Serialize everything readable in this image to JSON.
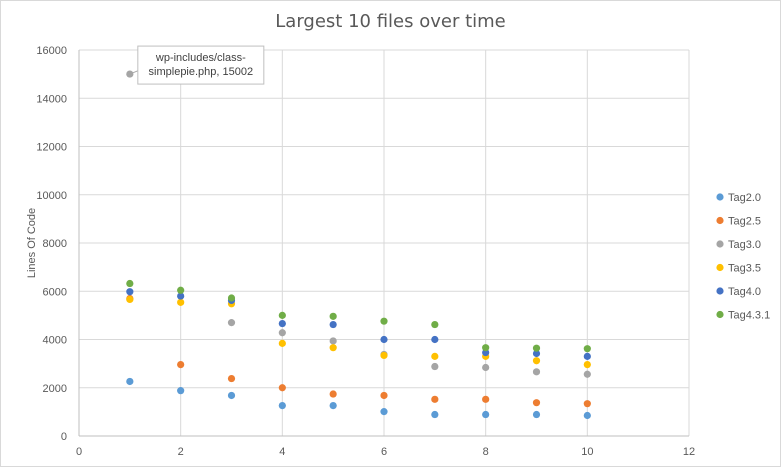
{
  "chart_data": {
    "type": "scatter",
    "title": "Largest 10 files over time",
    "xlabel": "",
    "ylabel": "Lines Of Code",
    "xlim": [
      0,
      12
    ],
    "ylim": [
      0,
      16000
    ],
    "xticks": [
      0,
      2,
      4,
      6,
      8,
      10,
      12
    ],
    "yticks": [
      0,
      2000,
      4000,
      6000,
      8000,
      10000,
      12000,
      14000,
      16000
    ],
    "grid": true,
    "legend_position": "right",
    "series": [
      {
        "name": "Tag2.0",
        "color": "#5b9bd5",
        "x": [
          1,
          2,
          3,
          4,
          5,
          6,
          7,
          8,
          9,
          10
        ],
        "y": [
          2260,
          1880,
          1680,
          1260,
          1260,
          1010,
          890,
          890,
          890,
          850
        ]
      },
      {
        "name": "Tag2.5",
        "color": "#ed7d31",
        "x": [
          1,
          2,
          3,
          4,
          5,
          6,
          7,
          8,
          9,
          10
        ],
        "y": [
          5700,
          2960,
          2380,
          2000,
          1740,
          1680,
          1520,
          1520,
          1380,
          1340
        ]
      },
      {
        "name": "Tag3.0",
        "color": "#a5a5a5",
        "x": [
          1,
          3,
          4,
          5,
          6,
          7,
          8,
          9,
          10
        ],
        "y": [
          15002,
          4700,
          4280,
          3940,
          3380,
          2880,
          2840,
          2660,
          2560
        ]
      },
      {
        "name": "Tag3.5",
        "color": "#ffc000",
        "x": [
          1,
          2,
          3,
          4,
          5,
          6,
          7,
          8,
          9,
          10
        ],
        "y": [
          5660,
          5540,
          5480,
          3840,
          3660,
          3340,
          3300,
          3300,
          3120,
          2960
        ]
      },
      {
        "name": "Tag4.0",
        "color": "#4472c4",
        "x": [
          1,
          2,
          3,
          4,
          5,
          6,
          7,
          8,
          9,
          10
        ],
        "y": [
          5980,
          5800,
          5620,
          4660,
          4620,
          4000,
          4000,
          3460,
          3420,
          3300
        ]
      },
      {
        "name": "Tag4.3.1",
        "color": "#70ad47",
        "x": [
          1,
          2,
          3,
          4,
          5,
          6,
          7,
          8,
          9,
          10
        ],
        "y": [
          6320,
          6040,
          5720,
          5000,
          4960,
          4760,
          4620,
          3660,
          3640,
          3620
        ]
      }
    ],
    "annotations": [
      {
        "series": "Tag3.0",
        "x": 1,
        "y": 15002,
        "lines": [
          "wp-includes/class-",
          "simplepie.php, 15002"
        ]
      }
    ]
  }
}
